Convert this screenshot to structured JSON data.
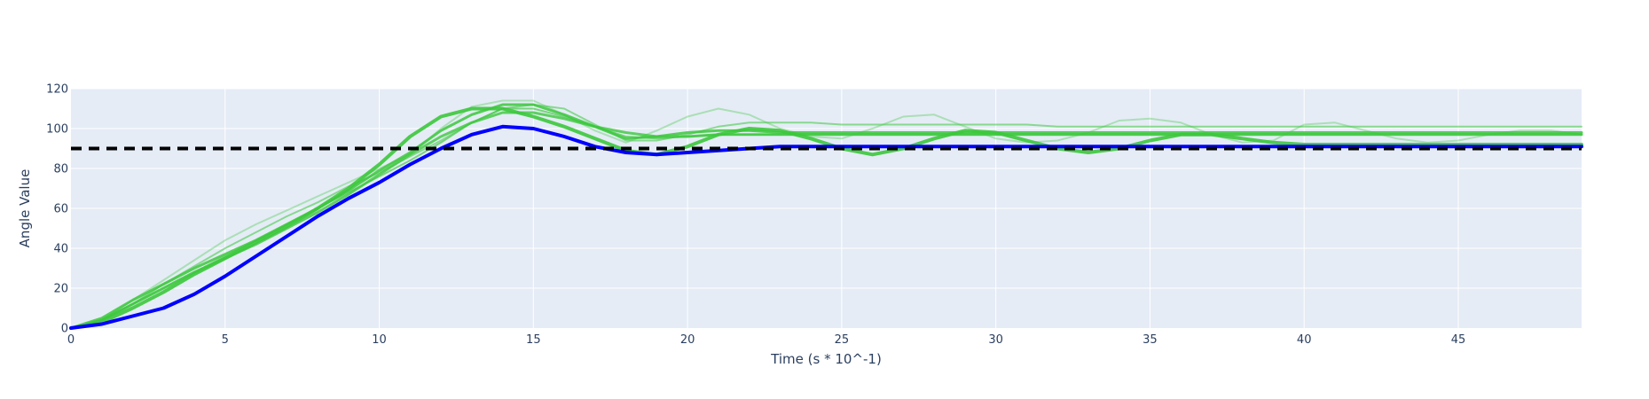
{
  "chart_data": {
    "type": "line",
    "title": "",
    "xlabel": "Time (s * 10^-1)",
    "ylabel": "Angle Value",
    "xlim": [
      0,
      49
    ],
    "ylim": [
      0,
      120
    ],
    "x_ticks": [
      0,
      5,
      10,
      15,
      20,
      25,
      30,
      35,
      40,
      45
    ],
    "y_ticks": [
      0,
      20,
      40,
      60,
      80,
      100,
      120
    ],
    "grid": true,
    "legend": "none",
    "colors": {
      "plot_bg": "#e5ecf6",
      "grid": "#ffffff",
      "target": "#000000",
      "reference": "#0000ff",
      "trial": "#3cc83c"
    },
    "target_value": 90,
    "series": [
      {
        "role": "trial",
        "opacity": 0.35,
        "width": 2,
        "x": [
          0,
          1,
          2,
          3,
          4,
          5,
          6,
          7,
          8,
          9,
          10,
          11,
          12,
          13,
          14,
          15,
          16,
          17,
          18,
          19,
          20,
          21,
          22,
          23,
          24,
          25,
          26,
          27,
          28,
          29,
          30,
          31,
          32,
          33,
          34,
          35,
          36,
          37,
          38,
          39,
          40,
          41,
          42,
          43,
          44,
          45,
          46,
          47,
          48,
          49
        ],
        "y": [
          0,
          4,
          14,
          24,
          34,
          44,
          52,
          59,
          66,
          73,
          80,
          87,
          100,
          111,
          114,
          114,
          107,
          99,
          93,
          99,
          106,
          110,
          107,
          100,
          96,
          95,
          100,
          106,
          107,
          101,
          95,
          93,
          94,
          98,
          104,
          105,
          103,
          97,
          93,
          94,
          102,
          103,
          99,
          95,
          93,
          94,
          97,
          99,
          99,
          97
        ]
      },
      {
        "role": "trial",
        "opacity": 0.55,
        "width": 2,
        "x": [
          0,
          1,
          2,
          3,
          4,
          5,
          6,
          7,
          8,
          9,
          10,
          11,
          12,
          13,
          14,
          15,
          16,
          17,
          18,
          19,
          20,
          21,
          22,
          23,
          24,
          25,
          26,
          27,
          28,
          29,
          30,
          31,
          32,
          33,
          34,
          35,
          36,
          37,
          38,
          39,
          40,
          41,
          42,
          43,
          44,
          45,
          46,
          47,
          48,
          49
        ],
        "y": [
          0,
          4,
          12,
          22,
          31,
          40,
          48,
          56,
          63,
          71,
          78,
          86,
          94,
          103,
          110,
          112,
          110,
          102,
          94,
          94,
          97,
          101,
          103,
          103,
          103,
          102,
          102,
          102,
          102,
          102,
          102,
          102,
          101,
          101,
          101,
          101,
          101,
          101,
          101,
          101,
          101,
          101,
          101,
          101,
          101,
          101,
          101,
          101,
          101,
          101
        ]
      },
      {
        "role": "trial",
        "opacity": 0.65,
        "width": 2,
        "x": [
          0,
          1,
          2,
          3,
          4,
          5,
          6,
          7,
          8,
          9,
          10,
          11,
          12,
          13,
          14,
          15,
          16,
          17,
          18,
          19,
          20,
          21,
          22,
          23,
          24,
          25,
          26,
          27,
          28,
          29,
          30,
          31,
          32,
          33,
          34,
          35,
          36,
          37,
          38,
          39,
          40,
          41,
          42,
          43,
          44,
          45,
          46,
          47,
          48,
          49
        ],
        "y": [
          0,
          4,
          12,
          20,
          28,
          36,
          44,
          52,
          60,
          68,
          76,
          84,
          93,
          103,
          110,
          110,
          106,
          101,
          96,
          95,
          96,
          97,
          97,
          97,
          97,
          97,
          97,
          97,
          97,
          97,
          97,
          97,
          97,
          97,
          97,
          97,
          97,
          97,
          97,
          97,
          97,
          97,
          97,
          97,
          97,
          97,
          97,
          97,
          97,
          97
        ]
      },
      {
        "role": "trial",
        "opacity": 0.8,
        "width": 3,
        "x": [
          0,
          1,
          2,
          3,
          4,
          5,
          6,
          7,
          8,
          9,
          10,
          11,
          12,
          13,
          14,
          15,
          16,
          17,
          18,
          19,
          20,
          21,
          22,
          23,
          24,
          25,
          26,
          27,
          28,
          29,
          30,
          31,
          32,
          33,
          34,
          35,
          36,
          37,
          38,
          39,
          40,
          41,
          42,
          43,
          44,
          45,
          46,
          47,
          48,
          49
        ],
        "y": [
          0,
          4,
          12,
          20,
          28,
          35,
          42,
          50,
          58,
          67,
          77,
          87,
          96,
          103,
          108,
          108,
          105,
          101,
          98,
          96,
          96,
          97,
          97,
          97,
          97,
          97,
          97,
          97,
          97,
          97,
          97,
          97,
          97,
          97,
          97,
          97,
          97,
          97,
          97,
          97,
          97,
          97,
          97,
          97,
          97,
          97,
          97,
          97,
          97,
          97
        ]
      },
      {
        "role": "trial",
        "opacity": 0.85,
        "width": 3,
        "x": [
          0,
          1,
          2,
          3,
          4,
          5,
          6,
          7,
          8,
          9,
          10,
          11,
          12,
          13,
          14,
          15,
          16,
          17,
          18,
          19,
          20,
          21,
          22,
          23,
          24,
          25,
          26,
          27,
          28,
          29,
          30,
          31,
          32,
          33,
          34,
          35,
          36,
          37,
          38,
          39,
          40,
          41,
          42,
          43,
          44,
          45,
          46,
          47,
          48,
          49
        ],
        "y": [
          0,
          5,
          14,
          22,
          30,
          37,
          44,
          52,
          60,
          69,
          79,
          88,
          99,
          107,
          112,
          112,
          107,
          101,
          95,
          96,
          98,
          99,
          99,
          98,
          98,
          98,
          98,
          98,
          98,
          98,
          98,
          98,
          98,
          98,
          98,
          98,
          98,
          98,
          98,
          98,
          98,
          98,
          98,
          98,
          98,
          98,
          98,
          98,
          98,
          98
        ]
      },
      {
        "role": "trial",
        "opacity": 0.9,
        "width": 4,
        "x": [
          0,
          1,
          2,
          3,
          4,
          5,
          6,
          7,
          8,
          9,
          10,
          11,
          12,
          13,
          14,
          15,
          16,
          17,
          18,
          19,
          20,
          21,
          22,
          23,
          24,
          25,
          26,
          27,
          28,
          29,
          30,
          31,
          32,
          33,
          34,
          35,
          36,
          37,
          38,
          39,
          40,
          41,
          42,
          43,
          44,
          45,
          46,
          47,
          48,
          49
        ],
        "y": [
          0,
          3,
          10,
          18,
          27,
          35,
          43,
          51,
          60,
          70,
          82,
          96,
          106,
          110,
          110,
          106,
          101,
          95,
          89,
          87,
          91,
          97,
          100,
          99,
          95,
          90,
          87,
          90,
          95,
          99,
          98,
          94,
          90,
          88,
          90,
          94,
          97,
          97,
          95,
          93,
          92,
          92,
          92,
          92,
          92,
          92,
          92,
          92,
          92,
          92
        ]
      },
      {
        "role": "reference",
        "opacity": 1,
        "width": 4,
        "x": [
          0,
          1,
          2,
          3,
          4,
          5,
          6,
          7,
          8,
          9,
          10,
          11,
          12,
          13,
          14,
          15,
          16,
          17,
          18,
          19,
          20,
          21,
          22,
          23,
          24,
          25,
          26,
          27,
          28,
          29,
          30,
          31,
          32,
          33,
          34,
          35,
          36,
          37,
          38,
          39,
          40,
          41,
          42,
          43,
          44,
          45,
          46,
          47,
          48,
          49
        ],
        "y": [
          0,
          2,
          6,
          10,
          17,
          26,
          36,
          46,
          56,
          65,
          73,
          82,
          90,
          97,
          101,
          100,
          96,
          91,
          88,
          87,
          88,
          89,
          90,
          91,
          91,
          91,
          91,
          91,
          91,
          91,
          91,
          91,
          91,
          91,
          91,
          91,
          91,
          91,
          91,
          91,
          91,
          91,
          91,
          91,
          91,
          91,
          91,
          91,
          91,
          91
        ]
      }
    ]
  }
}
